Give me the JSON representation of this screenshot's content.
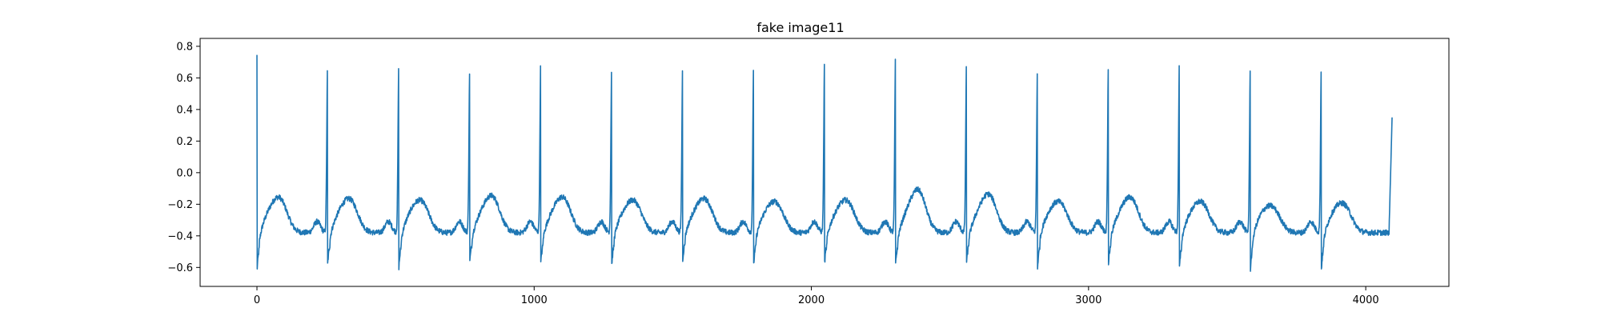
{
  "chart_data": {
    "type": "line",
    "title": "fake image11",
    "xlabel": "",
    "ylabel": "",
    "xlim": [
      -205,
      4300
    ],
    "ylim": [
      -0.72,
      0.85
    ],
    "x_ticks": [
      0,
      1000,
      2000,
      3000,
      4000
    ],
    "x_tick_labels": [
      "0",
      "1000",
      "2000",
      "3000",
      "4000"
    ],
    "y_ticks": [
      -0.6,
      -0.4,
      -0.2,
      0.0,
      0.2,
      0.4,
      0.6,
      0.8
    ],
    "y_tick_labels": [
      "−0.6",
      "−0.4",
      "−0.2",
      "0.0",
      "0.2",
      "0.4",
      "0.6",
      "0.8"
    ],
    "grid": false,
    "line_color": "#1f77b4",
    "series": [
      {
        "x_start": 0,
        "x_end": 4095,
        "start_value": 0.74,
        "end_value": 0.35,
        "baseline": -0.38,
        "r_peaks": [
          {
            "x": 0,
            "y": 0.74,
            "s_min": -0.63
          },
          {
            "x": 255,
            "y": 0.7,
            "s_min": -0.58
          },
          {
            "x": 512,
            "y": 0.71,
            "s_min": -0.6
          },
          {
            "x": 768,
            "y": 0.7,
            "s_min": -0.56
          },
          {
            "x": 1024,
            "y": 0.73,
            "s_min": -0.57
          },
          {
            "x": 1280,
            "y": 0.7,
            "s_min": -0.58
          },
          {
            "x": 1536,
            "y": 0.7,
            "s_min": -0.55
          },
          {
            "x": 1792,
            "y": 0.72,
            "s_min": -0.58
          },
          {
            "x": 2048,
            "y": 0.75,
            "s_min": -0.57
          },
          {
            "x": 2304,
            "y": 0.77,
            "s_min": -0.58
          },
          {
            "x": 2560,
            "y": 0.74,
            "s_min": -0.57
          },
          {
            "x": 2816,
            "y": 0.69,
            "s_min": -0.6
          },
          {
            "x": 3072,
            "y": 0.73,
            "s_min": -0.57
          },
          {
            "x": 3328,
            "y": 0.73,
            "s_min": -0.6
          },
          {
            "x": 3584,
            "y": 0.72,
            "s_min": -0.61
          },
          {
            "x": 3840,
            "y": 0.7,
            "s_min": -0.61
          }
        ],
        "t_wave_peaks": [
          -0.19,
          -0.2,
          -0.21,
          -0.18,
          -0.19,
          -0.21,
          -0.2,
          -0.22,
          -0.21,
          -0.14,
          -0.17,
          -0.22,
          -0.19,
          -0.22,
          -0.25,
          -0.23
        ]
      }
    ]
  }
}
